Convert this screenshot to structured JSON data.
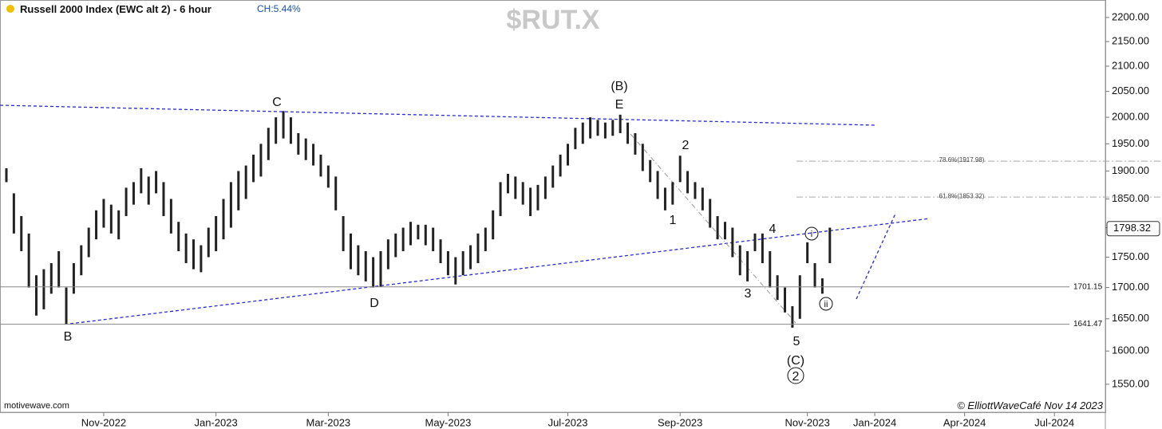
{
  "chart_data": {
    "type": "ohlc",
    "title": "Russell 2000 Index (EWC alt 2) - 6 hour",
    "change": "CH:5.44%",
    "symbol": "$RUT.X",
    "source": "motivewave.com",
    "credit": "© ElliottWaveCafé Nov 14 2023",
    "log_scale": true,
    "color": "#222222",
    "ylim": [
      1523,
      2237
    ],
    "yticks": [
      {
        "value": 1550,
        "label": "1550.00"
      },
      {
        "value": 1600,
        "label": "1600.00"
      },
      {
        "value": 1650,
        "label": "1650.00"
      },
      {
        "value": 1700,
        "label": "1700.00"
      },
      {
        "value": 1750,
        "label": "1750.00"
      },
      {
        "value": 1800,
        "label": "1800.00"
      },
      {
        "value": 1850,
        "label": "1850.00"
      },
      {
        "value": 1900,
        "label": "1900.00"
      },
      {
        "value": 1950,
        "label": "1950.00"
      },
      {
        "value": 2000,
        "label": "2000.00"
      },
      {
        "value": 2050,
        "label": "2050.00"
      },
      {
        "value": 2100,
        "label": "2100.00"
      },
      {
        "value": 2150,
        "label": "2150.00"
      },
      {
        "value": 2200,
        "label": "2200.00"
      }
    ],
    "hlines": [
      1701.15,
      1641.47
    ],
    "fib_levels": [
      {
        "value": 1917.98,
        "label": "78.6%(1917.98)"
      },
      {
        "value": 1853.32,
        "label": "61.8%(1853.32)"
      }
    ],
    "last_price": 1798.32,
    "annotations": [
      "C",
      "(B)",
      "E",
      "B",
      "D",
      "1",
      "2",
      "3",
      "4",
      "5",
      "(C)",
      "2",
      "i",
      "ii"
    ],
    "categories": [
      null,
      null,
      null,
      null,
      null,
      null,
      null,
      null,
      null,
      null,
      null,
      null,
      null,
      "Nov-2022",
      null,
      null,
      null,
      null,
      null,
      null,
      null,
      null,
      null,
      null,
      null,
      null,
      null,
      null,
      "Jan-2023",
      null,
      null,
      null,
      null,
      null,
      null,
      null,
      null,
      null,
      null,
      null,
      null,
      null,
      null,
      "Mar-2023",
      null,
      null,
      null,
      null,
      null,
      null,
      null,
      null,
      null,
      null,
      null,
      null,
      null,
      null,
      null,
      "May-2023",
      null,
      null,
      null,
      null,
      null,
      null,
      null,
      null,
      null,
      null,
      null,
      null,
      null,
      null,
      null,
      "Jul-2023",
      null,
      null,
      null,
      null,
      null,
      null,
      null,
      null,
      null,
      null,
      null,
      null,
      null,
      null,
      "Sep-2023",
      null,
      null,
      null,
      null,
      null,
      null,
      null,
      null,
      null,
      null,
      null,
      null,
      null,
      null,
      null,
      null,
      "Nov-2023",
      null,
      null,
      null,
      null,
      null,
      null,
      null,
      null,
      "Jan-2024",
      null,
      null,
      null,
      null,
      null,
      null,
      null,
      null,
      null,
      null,
      null,
      "Apr-2024",
      null,
      null,
      null,
      null,
      null,
      null,
      null,
      null,
      null,
      null,
      null,
      "Jul-2024",
      null
    ],
    "high": [
      1905,
      1860,
      1820,
      1790,
      1720,
      1730,
      1740,
      1760,
      1700,
      1740,
      1770,
      1800,
      1830,
      1850,
      1840,
      1830,
      1870,
      1880,
      1905,
      1890,
      1900,
      1880,
      1850,
      1810,
      1790,
      1780,
      1770,
      1800,
      1820,
      1850,
      1880,
      1900,
      1910,
      1930,
      1950,
      1980,
      2000,
      2012,
      2000,
      1970,
      1960,
      1950,
      1930,
      1910,
      1890,
      1820,
      1790,
      1770,
      1760,
      1750,
      1760,
      1780,
      1790,
      1800,
      1810,
      1805,
      1805,
      1800,
      1780,
      1760,
      1750,
      1760,
      1770,
      1790,
      1800,
      1830,
      1880,
      1895,
      1890,
      1880,
      1870,
      1875,
      1890,
      1910,
      1930,
      1950,
      1980,
      1990,
      2000,
      1995,
      1990,
      1995,
      2005,
      1990,
      1970,
      1950,
      1920,
      1900,
      1870,
      1880,
      1928,
      1900,
      1880,
      1870,
      1850,
      1820,
      1810,
      1800,
      1770,
      1760,
      1790,
      1790,
      1760,
      1720,
      1700,
      1670,
      1720,
      1775,
      1740,
      1715,
      1800,
      null,
      null,
      null,
      null,
      null,
      null,
      null,
      null,
      null,
      null,
      null,
      null,
      null,
      null,
      null,
      null,
      null,
      null,
      null,
      null,
      null,
      null,
      null,
      null,
      null,
      null,
      null,
      null,
      null,
      null,
      null
    ],
    "low": [
      1880,
      1790,
      1760,
      1700,
      1655,
      1665,
      1690,
      1700,
      1641,
      1690,
      1720,
      1750,
      1780,
      1800,
      1790,
      1780,
      1820,
      1840,
      1860,
      1840,
      1860,
      1820,
      1790,
      1760,
      1740,
      1730,
      1725,
      1750,
      1760,
      1780,
      1800,
      1830,
      1850,
      1880,
      1890,
      1920,
      1950,
      1960,
      1950,
      1930,
      1920,
      1910,
      1890,
      1870,
      1830,
      1760,
      1730,
      1720,
      1710,
      1700,
      1701,
      1730,
      1750,
      1760,
      1770,
      1780,
      1770,
      1760,
      1740,
      1720,
      1705,
      1720,
      1730,
      1740,
      1760,
      1780,
      1820,
      1860,
      1850,
      1840,
      1820,
      1830,
      1850,
      1870,
      1890,
      1910,
      1940,
      1950,
      1960,
      1965,
      1960,
      1965,
      1970,
      1950,
      1930,
      1900,
      1880,
      1850,
      1830,
      1840,
      1880,
      1860,
      1850,
      1830,
      1800,
      1780,
      1780,
      1750,
      1720,
      1710,
      1760,
      1740,
      1700,
      1680,
      1660,
      1636,
      1650,
      1740,
      1700,
      1690,
      1740,
      null,
      null,
      null,
      null,
      null,
      null,
      null,
      null,
      null,
      null,
      null,
      null,
      null,
      null,
      null,
      null,
      null,
      null,
      null,
      null,
      null,
      null,
      null,
      null,
      null,
      null,
      null,
      null,
      null,
      null,
      null
    ]
  }
}
